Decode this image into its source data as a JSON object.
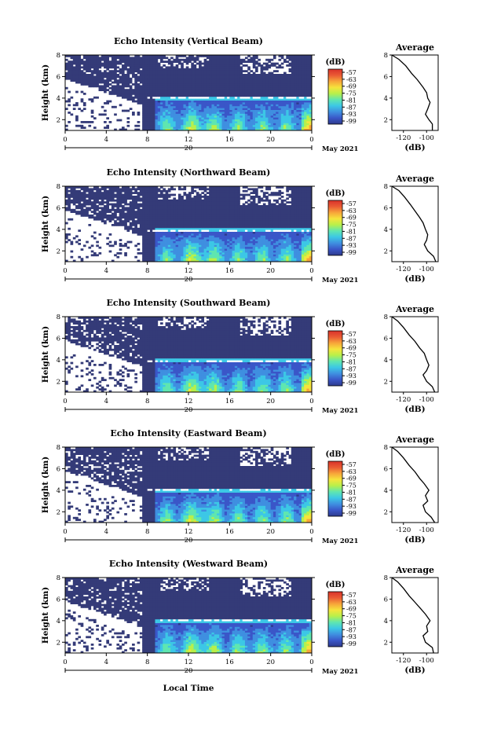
{
  "figure": {
    "xlabel": "Local Time",
    "date_label": "May 2021",
    "day_label": "20",
    "ylabel": "Height (km)",
    "colorbar_unit": "(dB)",
    "colorbar_ticks": [
      "-57",
      "-63",
      "-69",
      "-75",
      "-81",
      "-87",
      "-93",
      "-99"
    ],
    "average_title": "Average",
    "average_xlabel": "(dB)"
  },
  "colors": {
    "colormap": [
      "#2d3a8c",
      "#3a56c8",
      "#3f8fe0",
      "#3cc7e6",
      "#5fe6b0",
      "#b8f04a",
      "#f6e43c",
      "#f7a53a",
      "#ea5a34",
      "#d9322a"
    ],
    "background_echo": "#343b78",
    "line": "#000000"
  },
  "chart_data": [
    {
      "type": "heatmap",
      "title": "Echo Intensity (Vertical Beam)",
      "xlabel": "",
      "ylabel": "Height (km)",
      "x_ticks": [
        "0",
        "4",
        "8",
        "12",
        "16",
        "20",
        "0"
      ],
      "y_ticks": [
        "2",
        "4",
        "6",
        "8"
      ],
      "xlim": [
        0,
        24
      ],
      "ylim": [
        1,
        8
      ],
      "colorbar": {
        "label": "(dB)",
        "range": [
          -99,
          -57
        ],
        "ticks": [
          "-57",
          "-63",
          "-69",
          "-75",
          "-81",
          "-87",
          "-93",
          "-99"
        ]
      },
      "melting_layer_km": 4.0,
      "noise_intensity": 0.35
    },
    {
      "type": "line",
      "title": "Average",
      "xlabel": "(dB)",
      "x_ticks": [
        "-120",
        "-100"
      ],
      "y_ticks": [
        "2",
        "4",
        "6",
        "8"
      ],
      "xlim": [
        -130,
        -90
      ],
      "ylim": [
        1,
        8
      ],
      "series": [
        {
          "x": [
            -95,
            -95,
            -98,
            -101,
            -99,
            -97,
            -99,
            -100,
            -103,
            -108,
            -113,
            -118,
            -124,
            -130
          ],
          "y": [
            1.0,
            1.6,
            2.0,
            2.5,
            3.0,
            3.6,
            4.0,
            4.5,
            5.0,
            5.7,
            6.3,
            7.0,
            7.6,
            8.0
          ]
        }
      ]
    },
    {
      "type": "heatmap",
      "title": "Echo Intensity (Northward Beam)",
      "xlabel": "",
      "ylabel": "Height (km)",
      "x_ticks": [
        "0",
        "4",
        "8",
        "12",
        "16",
        "20",
        "0"
      ],
      "y_ticks": [
        "2",
        "4",
        "6",
        "8"
      ],
      "xlim": [
        0,
        24
      ],
      "ylim": [
        1,
        8
      ],
      "colorbar": {
        "label": "(dB)",
        "range": [
          -99,
          -57
        ],
        "ticks": [
          "-57",
          "-63",
          "-69",
          "-75",
          "-81",
          "-87",
          "-93",
          "-99"
        ]
      },
      "melting_layer_km": 3.95,
      "noise_intensity": 0.5
    },
    {
      "type": "line",
      "title": "Average",
      "xlabel": "(dB)",
      "x_ticks": [
        "-120",
        "-100"
      ],
      "y_ticks": [
        "2",
        "4",
        "6",
        "8"
      ],
      "xlim": [
        -130,
        -90
      ],
      "ylim": [
        1,
        8
      ],
      "series": [
        {
          "x": [
            -92,
            -94,
            -99,
            -102,
            -100,
            -99,
            -101,
            -103,
            -106,
            -110,
            -114,
            -119,
            -124,
            -130
          ],
          "y": [
            1.0,
            1.5,
            2.0,
            2.6,
            3.0,
            3.5,
            4.0,
            4.6,
            5.1,
            5.7,
            6.3,
            7.0,
            7.6,
            8.0
          ]
        }
      ]
    },
    {
      "type": "heatmap",
      "title": "Echo Intensity (Southward Beam)",
      "xlabel": "",
      "ylabel": "Height (km)",
      "x_ticks": [
        "0",
        "4",
        "8",
        "12",
        "16",
        "20",
        "0"
      ],
      "y_ticks": [
        "2",
        "4",
        "6",
        "8"
      ],
      "xlim": [
        0,
        24
      ],
      "ylim": [
        1,
        8
      ],
      "colorbar": {
        "label": "(dB)",
        "range": [
          -99,
          -57
        ],
        "ticks": [
          "-57",
          "-63",
          "-69",
          "-75",
          "-81",
          "-87",
          "-93",
          "-99"
        ]
      },
      "melting_layer_km": 3.95,
      "noise_intensity": 0.55
    },
    {
      "type": "line",
      "title": "Average",
      "xlabel": "(dB)",
      "x_ticks": [
        "-120",
        "-100"
      ],
      "y_ticks": [
        "2",
        "4",
        "6",
        "8"
      ],
      "xlim": [
        -130,
        -90
      ],
      "ylim": [
        1,
        8
      ],
      "series": [
        {
          "x": [
            -93,
            -95,
            -100,
            -103,
            -100,
            -98,
            -100,
            -102,
            -106,
            -110,
            -115,
            -120,
            -125,
            -130
          ],
          "y": [
            1.0,
            1.5,
            2.0,
            2.6,
            3.0,
            3.5,
            4.0,
            4.6,
            5.1,
            5.7,
            6.3,
            7.0,
            7.6,
            8.0
          ]
        }
      ]
    },
    {
      "type": "heatmap",
      "title": "Echo Intensity (Eastward Beam)",
      "xlabel": "",
      "ylabel": "Height (km)",
      "x_ticks": [
        "0",
        "4",
        "8",
        "12",
        "16",
        "20",
        "0"
      ],
      "y_ticks": [
        "2",
        "4",
        "6",
        "8"
      ],
      "xlim": [
        0,
        24
      ],
      "ylim": [
        1,
        8
      ],
      "colorbar": {
        "label": "(dB)",
        "range": [
          -99,
          -57
        ],
        "ticks": [
          "-57",
          "-63",
          "-69",
          "-75",
          "-81",
          "-87",
          "-93",
          "-99"
        ]
      },
      "melting_layer_km": 4.0,
      "noise_intensity": 0.6
    },
    {
      "type": "line",
      "title": "Average",
      "xlabel": "(dB)",
      "x_ticks": [
        "-120",
        "-100"
      ],
      "y_ticks": [
        "2",
        "4",
        "6",
        "8"
      ],
      "xlim": [
        -130,
        -90
      ],
      "ylim": [
        1,
        8
      ],
      "series": [
        {
          "x": [
            -93,
            -96,
            -101,
            -103,
            -99,
            -101,
            -98,
            -102,
            -106,
            -110,
            -115,
            -120,
            -125,
            -130
          ],
          "y": [
            1.0,
            1.5,
            2.0,
            2.6,
            3.0,
            3.5,
            4.0,
            4.6,
            5.1,
            5.7,
            6.3,
            7.0,
            7.6,
            8.0
          ]
        }
      ]
    },
    {
      "type": "heatmap",
      "title": "Echo Intensity (Westward Beam)",
      "xlabel": "Local Time",
      "ylabel": "Height (km)",
      "x_ticks": [
        "0",
        "4",
        "8",
        "12",
        "16",
        "20",
        "0"
      ],
      "y_ticks": [
        "2",
        "4",
        "6",
        "8"
      ],
      "xlim": [
        0,
        24
      ],
      "ylim": [
        1,
        8
      ],
      "colorbar": {
        "label": "(dB)",
        "range": [
          -99,
          -57
        ],
        "ticks": [
          "-57",
          "-63",
          "-69",
          "-75",
          "-81",
          "-87",
          "-93",
          "-99"
        ]
      },
      "melting_layer_km": 4.0,
      "noise_intensity": 0.5
    },
    {
      "type": "line",
      "title": "Average",
      "xlabel": "(dB)",
      "x_ticks": [
        "-120",
        "-100"
      ],
      "y_ticks": [
        "2",
        "4",
        "6",
        "8"
      ],
      "xlim": [
        -130,
        -90
      ],
      "ylim": [
        1,
        8
      ],
      "series": [
        {
          "x": [
            -94,
            -95,
            -101,
            -103,
            -99,
            -100,
            -97,
            -101,
            -105,
            -110,
            -115,
            -120,
            -125,
            -130
          ],
          "y": [
            1.0,
            1.5,
            2.0,
            2.6,
            3.0,
            3.5,
            4.0,
            4.6,
            5.1,
            5.7,
            6.3,
            7.0,
            7.6,
            8.0
          ]
        }
      ]
    }
  ]
}
